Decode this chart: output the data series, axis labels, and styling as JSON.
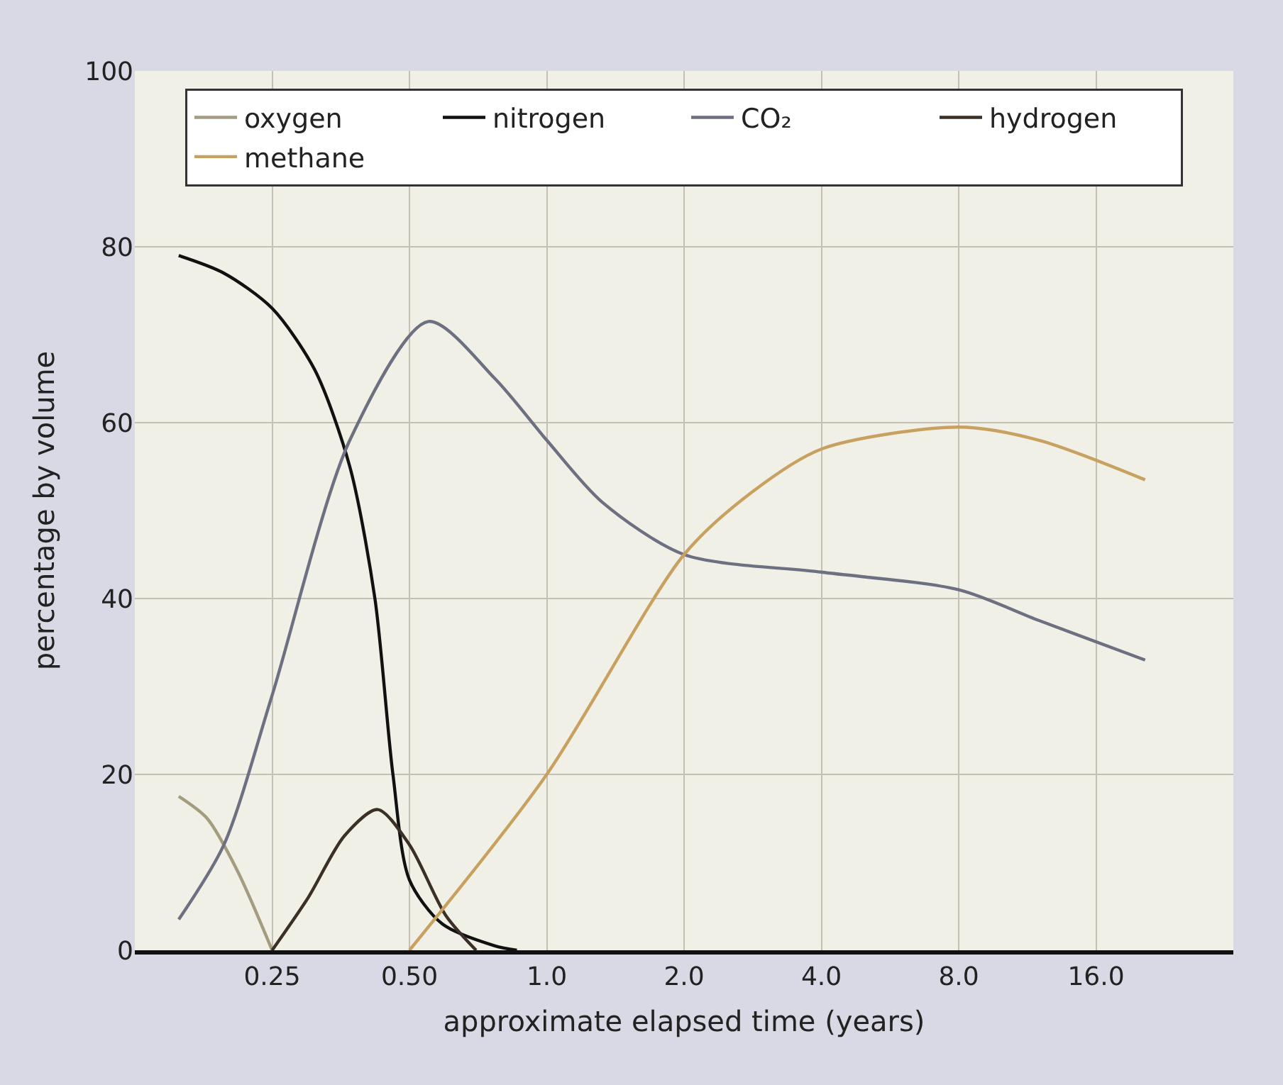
{
  "chart_data": {
    "type": "line",
    "xlabel": "approximate elapsed time (years)",
    "ylabel": "percentage by volume",
    "log": "x",
    "xlim": [
      0.125,
      32
    ],
    "xticks": [
      0.25,
      {
        "value": 0.5,
        "label": "0.50"
      },
      {
        "value": 1,
        "label": "1.0"
      },
      {
        "value": 2,
        "label": "2.0"
      },
      {
        "value": 4,
        "label": "4.0"
      },
      {
        "value": 8,
        "label": "8.0"
      },
      {
        "value": 16,
        "label": "16.0"
      }
    ],
    "ylim": [
      0,
      100
    ],
    "yticks": [
      0,
      20,
      40,
      60,
      80,
      100
    ],
    "grid": true,
    "legend": "top",
    "marker": "none",
    "line_style": "solid",
    "series": [
      {
        "name": "oxygen",
        "color": "#a39c7e",
        "x": [
          0.156,
          0.18,
          0.21,
          0.25
        ],
        "values": [
          17.5,
          15,
          9,
          0
        ]
      },
      {
        "name": "nitrogen",
        "color": "#111111",
        "x": [
          0.156,
          0.196,
          0.25,
          0.31,
          0.37,
          0.42,
          0.46,
          0.5,
          0.59,
          0.77,
          0.86
        ],
        "values": [
          79,
          77,
          73,
          66,
          55,
          40,
          20,
          8,
          3,
          0.5,
          0
        ]
      },
      {
        "name": "CO₂",
        "color": "#6c7080",
        "x": [
          0.156,
          0.196,
          0.25,
          0.37,
          0.55,
          0.77,
          1.0,
          1.32,
          2,
          4,
          8,
          12,
          20.5
        ],
        "values": [
          3.5,
          12,
          29,
          58,
          71.5,
          65,
          58,
          51,
          45,
          43,
          41,
          37.5,
          33
        ]
      },
      {
        "name": "hydrogen",
        "color": "#3a3028",
        "x": [
          0.25,
          0.3,
          0.36,
          0.426,
          0.5,
          0.6,
          0.7
        ],
        "values": [
          0,
          6,
          13,
          16,
          12,
          4,
          0
        ]
      },
      {
        "name": "methane",
        "color": "#c8a060",
        "x": [
          0.5,
          1.0,
          2,
          2.8,
          4,
          8,
          12,
          20.5
        ],
        "values": [
          0,
          20,
          45,
          52,
          57,
          59.5,
          58,
          53.5
        ]
      }
    ]
  }
}
